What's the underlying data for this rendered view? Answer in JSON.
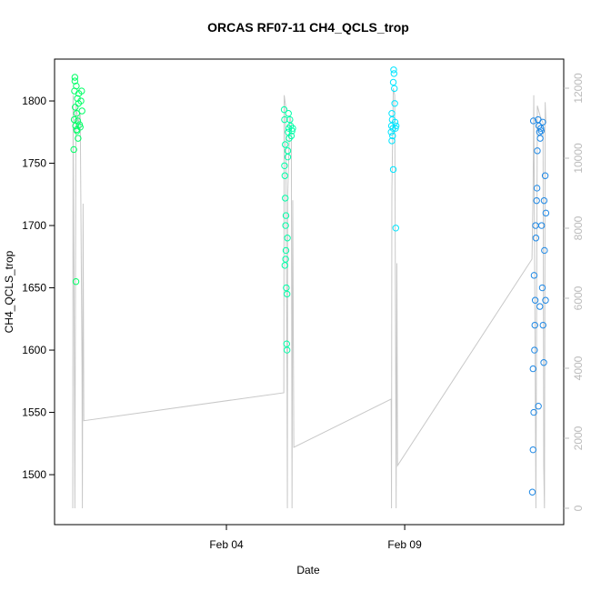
{
  "chart_data": {
    "type": "scatter",
    "title": "ORCAS RF07-11 CH4_QCLS_trop",
    "x_label": "Date",
    "y_label": "CH4_QCLS_trop",
    "xlim": [
      -0.82,
      13.46
    ],
    "xticks": [
      {
        "value": 4,
        "label": "Feb 04"
      },
      {
        "value": 9,
        "label": "Feb 09"
      }
    ],
    "ylim": [
      1459.9,
      1833.6
    ],
    "yticks": [
      1500,
      1550,
      1600,
      1650,
      1700,
      1750,
      1800
    ],
    "y2lim": [
      -468,
      12831
    ],
    "y2ticks": [
      0,
      2000,
      4000,
      6000,
      8000,
      10000,
      12000
    ],
    "series": [
      {
        "axis": "y2",
        "color": "#c8c8c8",
        "x": [
          -0.31,
          -0.3,
          -0.27,
          -0.25,
          -0.22,
          -0.15,
          -0.1,
          -0.05,
          -0.04,
          -0.02,
          0.0,
          5.61,
          5.62,
          5.66,
          5.7,
          5.71,
          5.72,
          5.78,
          5.82,
          5.84,
          5.86,
          5.89,
          8.62,
          8.63,
          8.64,
          8.68,
          8.72,
          8.75,
          8.76,
          8.78,
          8.8,
          12.57,
          12.6,
          12.62,
          12.66,
          12.68,
          12.72,
          12.8,
          12.88,
          12.9,
          12.92,
          12.94,
          12.96
        ],
        "values": [
          0,
          11800,
          5000,
          0,
          11500,
          11000,
          11300,
          4000,
          0,
          8700,
          2500,
          3300,
          11800,
          11500,
          3500,
          0,
          9000,
          11200,
          11000,
          0,
          8800,
          1740,
          3117,
          0,
          9000,
          12000,
          11800,
          3000,
          0,
          7000,
          1220,
          7117,
          9000,
          11800,
          4000,
          0,
          11500,
          11200,
          11000,
          1200,
          0,
          11600,
          11000
        ]
      },
      {
        "color": "#00ff66",
        "x": [
          -0.28,
          -0.27,
          -0.26,
          -0.25,
          -0.24,
          -0.23,
          -0.22,
          -0.21,
          -0.2,
          -0.19,
          -0.18,
          -0.17,
          -0.16,
          -0.15,
          -0.14,
          -0.12,
          -0.1,
          -0.08,
          -0.06,
          -0.05,
          -0.25,
          -0.2
        ],
        "values": [
          1761,
          1785,
          1808,
          1816,
          1795,
          1780,
          1655,
          1812,
          1790,
          1776,
          1802,
          1784,
          1770,
          1798,
          1806,
          1781,
          1779,
          1800,
          1808,
          1792,
          1819,
          1777
        ]
      },
      {
        "color": "#00ffa8",
        "x": [
          5.62,
          5.63,
          5.64,
          5.65,
          5.66,
          5.67,
          5.68,
          5.69,
          5.7,
          5.71,
          5.72,
          5.73,
          5.74,
          5.75,
          5.76,
          5.78,
          5.8,
          5.82,
          5.84,
          5.86,
          5.63,
          5.65,
          5.67,
          5.7,
          5.72,
          5.64,
          5.66
        ],
        "values": [
          1793,
          1785,
          1740,
          1722,
          1700,
          1680,
          1650,
          1605,
          1600,
          1690,
          1760,
          1775,
          1790,
          1778,
          1770,
          1785,
          1780,
          1772,
          1776,
          1778,
          1748,
          1765,
          1708,
          1645,
          1755,
          1668,
          1673
        ]
      },
      {
        "color": "#00e5ff",
        "x": [
          8.62,
          8.63,
          8.64,
          8.65,
          8.66,
          8.67,
          8.68,
          8.69,
          8.7,
          8.71,
          8.72,
          8.73,
          8.74,
          8.75,
          8.76,
          8.64,
          8.68
        ],
        "values": [
          1775,
          1780,
          1790,
          1785,
          1772,
          1778,
          1745,
          1825,
          1822,
          1810,
          1798,
          1783,
          1778,
          1698,
          1780,
          1768,
          1815
        ]
      },
      {
        "color": "#1e88e5",
        "x": [
          12.58,
          12.6,
          12.62,
          12.64,
          12.66,
          12.68,
          12.7,
          12.72,
          12.74,
          12.76,
          12.78,
          12.8,
          12.82,
          12.84,
          12.86,
          12.88,
          12.9,
          12.92,
          12.94,
          12.96,
          12.6,
          12.63,
          12.67,
          12.71,
          12.75,
          12.79,
          12.83,
          12.87,
          12.91,
          12.95,
          12.61,
          12.65
        ],
        "values": [
          1486,
          1520,
          1550,
          1600,
          1640,
          1690,
          1720,
          1760,
          1785,
          1780,
          1775,
          1770,
          1778,
          1700,
          1650,
          1620,
          1590,
          1680,
          1740,
          1710,
          1585,
          1660,
          1700,
          1730,
          1555,
          1635,
          1776,
          1783,
          1720,
          1640,
          1784,
          1620
        ]
      }
    ]
  }
}
